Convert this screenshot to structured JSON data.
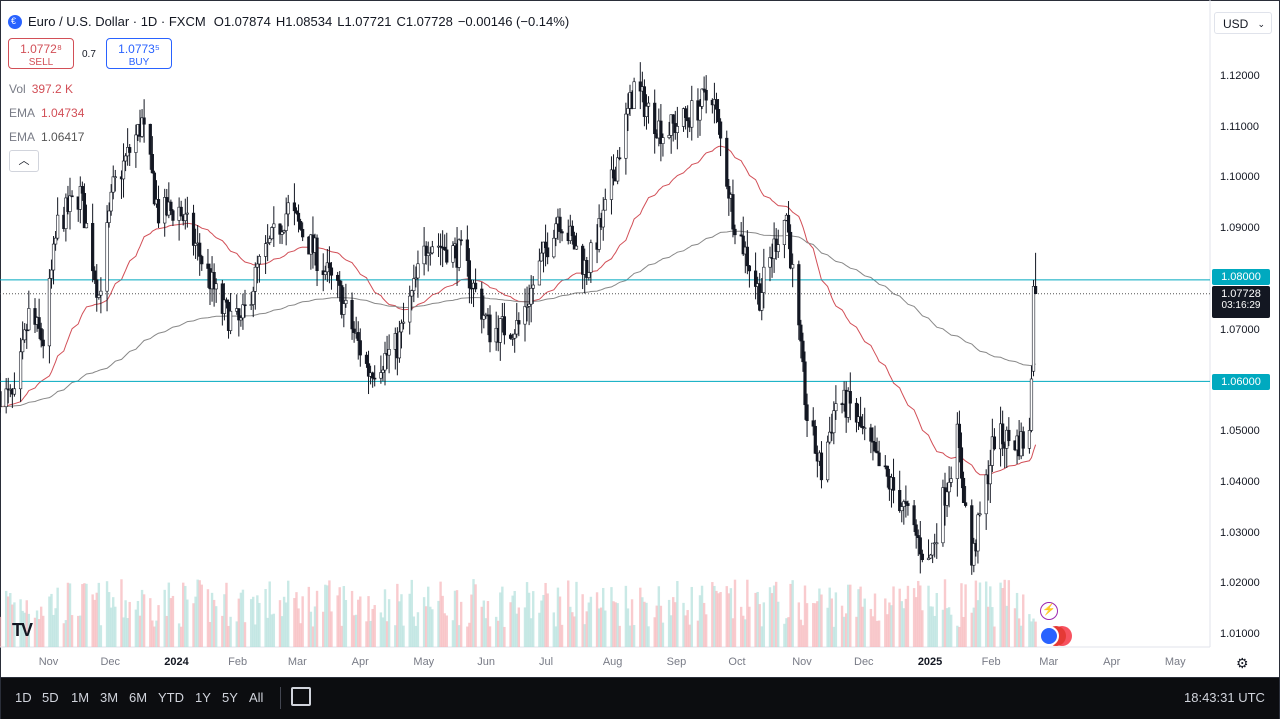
{
  "header": {
    "symbol": "Euro / U.S. Dollar · 1D · FXCM",
    "open_label": "O",
    "open": "1.07874",
    "high_label": "H",
    "high": "1.08534",
    "low_label": "L",
    "low": "1.07721",
    "close_label": "C",
    "close": "1.07728",
    "change": "−0.00146 (−0.14%)"
  },
  "trade": {
    "sell_price": "1.0772⁸",
    "sell_label": "SELL",
    "spread": "0.7",
    "buy_price": "1.0773⁵",
    "buy_label": "BUY"
  },
  "indicators": [
    {
      "name": "Vol",
      "value": "397.2 K",
      "color": "#d24f57"
    },
    {
      "name": "EMA",
      "value": "1.04734",
      "color": "#d24f57"
    },
    {
      "name": "EMA",
      "value": "1.06417",
      "color": "#555555"
    }
  ],
  "collapse_icon": "chevron-up-icon",
  "currency_select": "USD",
  "price_axis": [
    "1.12000",
    "1.11000",
    "1.10000",
    "1.09000",
    "1.08000",
    "1.07000",
    "1.06000",
    "1.05000",
    "1.04000",
    "1.03000",
    "1.02000",
    "1.01000"
  ],
  "horizontal_lines": [
    {
      "price": 1.08,
      "label": "1.08000",
      "color": "#00a9bf"
    },
    {
      "price": 1.06,
      "label": "1.06000",
      "color": "#00a9bf"
    }
  ],
  "current_price": {
    "price": 1.07728,
    "label": "1.07728",
    "countdown": "03:16:29"
  },
  "time_axis": [
    "Nov",
    "Dec",
    "2024",
    "Feb",
    "Mar",
    "Apr",
    "May",
    "Jun",
    "Jul",
    "Aug",
    "Sep",
    "Oct",
    "Nov",
    "Dec",
    "2025",
    "Feb",
    "Mar",
    "Apr",
    "May"
  ],
  "ranges": [
    "1D",
    "5D",
    "1M",
    "3M",
    "6M",
    "YTD",
    "1Y",
    "5Y",
    "All"
  ],
  "clock": "18:43:31 UTC",
  "logo_text": "TV",
  "chart_data": {
    "type": "candlestick",
    "title": "Euro / U.S. Dollar · 1D · FXCM",
    "y_axis_range": [
      1.005,
      1.125
    ],
    "x_range": [
      "2023-10-20",
      "2025-05-20"
    ],
    "ema_fast_color": "#d24f57",
    "ema_slow_color": "#888888",
    "up_color": "#ffffff",
    "down_color": "#131722",
    "volume_up_color": "#b2dfdb",
    "volume_down_color": "#f7b5b9",
    "price_path": [
      {
        "date": "2023-10-20",
        "close": 1.058
      },
      {
        "date": "2023-10-27",
        "close": 1.056
      },
      {
        "date": "2023-11-03",
        "close": 1.073
      },
      {
        "date": "2023-11-10",
        "close": 1.068
      },
      {
        "date": "2023-11-17",
        "close": 1.091
      },
      {
        "date": "2023-11-28",
        "close": 1.097
      },
      {
        "date": "2023-12-07",
        "close": 1.077
      },
      {
        "date": "2023-12-14",
        "close": 1.098
      },
      {
        "date": "2023-12-28",
        "close": 1.111
      },
      {
        "date": "2024-01-05",
        "close": 1.093
      },
      {
        "date": "2024-01-15",
        "close": 1.094
      },
      {
        "date": "2024-01-25",
        "close": 1.085
      },
      {
        "date": "2024-02-05",
        "close": 1.074
      },
      {
        "date": "2024-02-14",
        "close": 1.071
      },
      {
        "date": "2024-02-22",
        "close": 1.082
      },
      {
        "date": "2024-03-08",
        "close": 1.094
      },
      {
        "date": "2024-03-20",
        "close": 1.086
      },
      {
        "date": "2024-04-02",
        "close": 1.077
      },
      {
        "date": "2024-04-16",
        "close": 1.062
      },
      {
        "date": "2024-04-30",
        "close": 1.067
      },
      {
        "date": "2024-05-15",
        "close": 1.088
      },
      {
        "date": "2024-05-31",
        "close": 1.085
      },
      {
        "date": "2024-06-14",
        "close": 1.07
      },
      {
        "date": "2024-06-28",
        "close": 1.071
      },
      {
        "date": "2024-07-17",
        "close": 1.093
      },
      {
        "date": "2024-07-31",
        "close": 1.082
      },
      {
        "date": "2024-08-08",
        "close": 1.092
      },
      {
        "date": "2024-08-23",
        "close": 1.118
      },
      {
        "date": "2024-09-06",
        "close": 1.109
      },
      {
        "date": "2024-09-18",
        "close": 1.112
      },
      {
        "date": "2024-09-30",
        "close": 1.117
      },
      {
        "date": "2024-10-10",
        "close": 1.093
      },
      {
        "date": "2024-10-23",
        "close": 1.077
      },
      {
        "date": "2024-10-31",
        "close": 1.088
      },
      {
        "date": "2024-11-05",
        "close": 1.093
      },
      {
        "date": "2024-11-15",
        "close": 1.053
      },
      {
        "date": "2024-11-22",
        "close": 1.042
      },
      {
        "date": "2024-11-29",
        "close": 1.056
      },
      {
        "date": "2024-12-06",
        "close": 1.055
      },
      {
        "date": "2024-12-20",
        "close": 1.043
      },
      {
        "date": "2024-12-31",
        "close": 1.036
      },
      {
        "date": "2025-01-13",
        "close": 1.024
      },
      {
        "date": "2025-01-27",
        "close": 1.049
      },
      {
        "date": "2025-02-03",
        "close": 1.024
      },
      {
        "date": "2025-02-14",
        "close": 1.049
      },
      {
        "date": "2025-02-26",
        "close": 1.048
      },
      {
        "date": "2025-03-03",
        "close": 1.049
      },
      {
        "date": "2025-03-04",
        "close": 1.062
      },
      {
        "date": "2025-03-05",
        "close": 1.079
      },
      {
        "date": "2025-03-06",
        "close": 1.077
      }
    ]
  }
}
